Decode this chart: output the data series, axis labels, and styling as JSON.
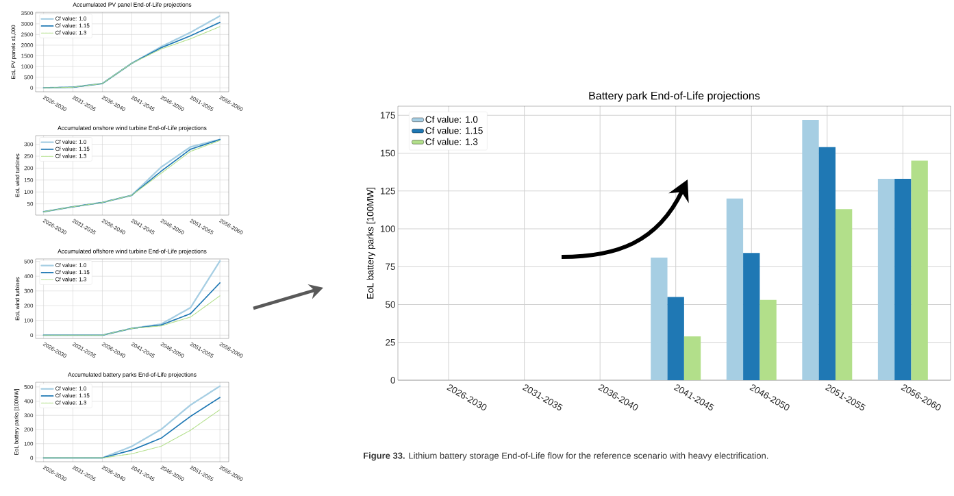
{
  "chart_data": [
    {
      "type": "line",
      "title": "Accumulated PV panel End-of-Life projections",
      "ylabel": "EoL PV panels x1,000",
      "categories": [
        "2026-2030",
        "2031-2035",
        "2036-2040",
        "2041-2045",
        "2046-2050",
        "2051-2055",
        "2056-2060"
      ],
      "series": [
        {
          "name": "Cf value: 1.0",
          "color": "#a6cee3",
          "values": [
            0,
            30,
            200,
            1150,
            1930,
            2600,
            3370
          ]
        },
        {
          "name": "Cf value: 1.15",
          "color": "#1f78b4",
          "values": [
            0,
            30,
            200,
            1150,
            1880,
            2440,
            3070
          ]
        },
        {
          "name": "Cf value: 1.3",
          "color": "#b2df8a",
          "values": [
            0,
            30,
            200,
            1150,
            1820,
            2300,
            2870
          ]
        }
      ],
      "ylim": [
        -185,
        3540
      ],
      "yticks": [
        0,
        500,
        1000,
        1500,
        2000,
        2500,
        3000,
        3500
      ],
      "grid": true,
      "legend": "top left",
      "line_style": "dashed"
    },
    {
      "type": "line",
      "title": "Accumulated onshore wind turbine End-of-Life projections",
      "ylabel": "EoL wind turbines",
      "categories": [
        "2026-2030",
        "2031-2035",
        "2036-2040",
        "2041-2045",
        "2046-2050",
        "2051-2055",
        "2056-2060"
      ],
      "series": [
        {
          "name": "Cf value: 1.0",
          "color": "#a6cee3",
          "values": [
            17,
            38,
            56,
            86,
            204,
            289,
            320
          ]
        },
        {
          "name": "Cf value: 1.15",
          "color": "#1f78b4",
          "values": [
            17,
            38,
            56,
            86,
            187,
            279,
            320
          ]
        },
        {
          "name": "Cf value: 1.3",
          "color": "#b2df8a",
          "values": [
            17,
            38,
            56,
            86,
            178,
            270,
            316
          ]
        }
      ],
      "ylim": [
        3,
        336
      ],
      "yticks": [
        50,
        100,
        150,
        200,
        250,
        300
      ],
      "grid": true,
      "legend": "top left",
      "line_style": "dashed"
    },
    {
      "type": "line",
      "title": "Accumulated offshore wind turbine End-of-Life projections",
      "ylabel": "EoL wind turbines",
      "categories": [
        "2026-2030",
        "2031-2035",
        "2036-2040",
        "2041-2045",
        "2046-2050",
        "2051-2055",
        "2056-2060"
      ],
      "series": [
        {
          "name": "Cf value: 1.0",
          "color": "#a6cee3",
          "values": [
            0,
            0,
            0,
            46,
            75,
            187,
            503
          ]
        },
        {
          "name": "Cf value: 1.15",
          "color": "#1f78b4",
          "values": [
            0,
            0,
            0,
            46,
            69,
            146,
            355
          ]
        },
        {
          "name": "Cf value: 1.3",
          "color": "#b2df8a",
          "values": [
            0,
            0,
            0,
            46,
            63,
            123,
            267
          ]
        }
      ],
      "ylim": [
        -22,
        517
      ],
      "yticks": [
        0,
        100,
        200,
        300,
        400,
        500
      ],
      "grid": true,
      "legend": "top left",
      "line_style": "dashed"
    },
    {
      "type": "line",
      "title": "Accumulated battery parks End-of-Life projections",
      "ylabel": "EoL battery parks [100MW]",
      "categories": [
        "2026-2030",
        "2031-2035",
        "2036-2040",
        "2041-2045",
        "2046-2050",
        "2051-2055",
        "2056-2060"
      ],
      "series": [
        {
          "name": "Cf value: 1.0",
          "color": "#a6cee3",
          "values": [
            0,
            0,
            0,
            81,
            201,
            373,
            506
          ]
        },
        {
          "name": "Cf value: 1.15",
          "color": "#1f78b4",
          "values": [
            0,
            0,
            0,
            55,
            139,
            293,
            426
          ]
        },
        {
          "name": "Cf value: 1.3",
          "color": "#b2df8a",
          "values": [
            0,
            0,
            0,
            29,
            82,
            195,
            340
          ]
        }
      ],
      "ylim": [
        -27,
        533
      ],
      "yticks": [
        0,
        100,
        200,
        300,
        400,
        500
      ],
      "grid": true,
      "legend": "top left",
      "line_style": "dashed"
    },
    {
      "type": "bar",
      "title": "Battery park End-of-Life projections",
      "ylabel": "EoL battery parks [100MW]",
      "categories": [
        "2026-2030",
        "2031-2035",
        "2036-2040",
        "2041-2045",
        "2046-2050",
        "2051-2055",
        "2056-2060"
      ],
      "series": [
        {
          "name": "Cf value: 1.0",
          "color": "#a6cee3",
          "values": [
            0,
            0,
            0,
            81,
            120,
            172,
            133
          ]
        },
        {
          "name": "Cf value: 1.15",
          "color": "#1f78b4",
          "values": [
            0,
            0,
            0,
            55,
            84,
            154,
            133
          ]
        },
        {
          "name": "Cf value: 1.3",
          "color": "#b2df8a",
          "values": [
            0,
            0,
            0,
            29,
            53,
            113,
            145
          ]
        }
      ],
      "ylim": [
        0,
        181
      ],
      "yticks": [
        0,
        25,
        50,
        75,
        100,
        125,
        150,
        175
      ],
      "grid": true,
      "legend": "top left",
      "annotations": [
        "**Figure 33.** Lithium battery storage End-of-Life flow for the reference scenario with heavy electrification."
      ]
    }
  ]
}
